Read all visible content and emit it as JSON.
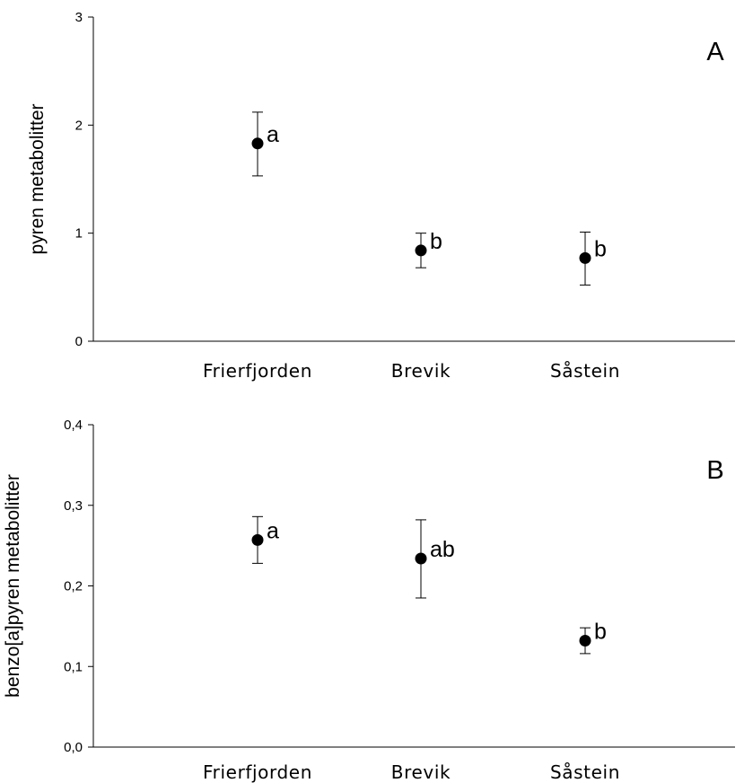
{
  "chart_data": [
    {
      "type": "scatter",
      "panel_label": "A",
      "ylabel": "pyren metabolitter",
      "xlabel": "",
      "categories": [
        "Frierfjorden",
        "Brevik",
        "Såstein"
      ],
      "ylim": [
        0,
        3
      ],
      "yticks": [
        0,
        1,
        2,
        3
      ],
      "ytick_labels": [
        "0",
        "1",
        "2",
        "3"
      ],
      "grid": false,
      "series": [
        {
          "values": [
            1.83,
            0.84,
            0.77
          ],
          "error_low": [
            1.53,
            0.68,
            0.52
          ],
          "error_high": [
            2.12,
            1.0,
            1.01
          ],
          "annotations": [
            "a",
            "b",
            "b"
          ]
        }
      ]
    },
    {
      "type": "scatter",
      "panel_label": "B",
      "ylabel": "benzo[a]pyren metabolitter",
      "xlabel": "",
      "categories": [
        "Frierfjorden",
        "Brevik",
        "Såstein"
      ],
      "ylim": [
        0,
        0.4
      ],
      "yticks": [
        0,
        0.1,
        0.2,
        0.3,
        0.4
      ],
      "ytick_labels": [
        "0,0",
        "0,1",
        "0,2",
        "0,3",
        "0,4"
      ],
      "grid": false,
      "series": [
        {
          "values": [
            0.257,
            0.234,
            0.132
          ],
          "error_low": [
            0.228,
            0.185,
            0.116
          ],
          "error_high": [
            0.286,
            0.282,
            0.148
          ],
          "annotations": [
            "a",
            "ab",
            "b"
          ]
        }
      ]
    }
  ]
}
